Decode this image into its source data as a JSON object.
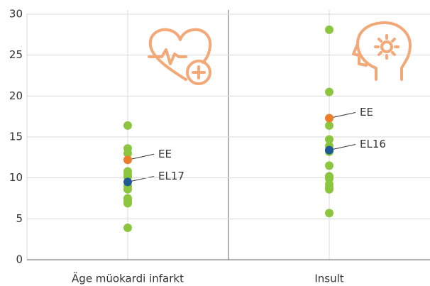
{
  "chart_data": {
    "type": "strip",
    "ylim": [
      0,
      30
    ],
    "yticks": [
      0,
      5,
      10,
      15,
      20,
      25,
      30
    ],
    "grid": true,
    "color": "#8cc63f",
    "categories": [
      {
        "name": "Äge müokardi infarkt",
        "values": [
          16.4,
          13.6,
          13.0,
          10.8,
          10.4,
          10.1,
          9.0,
          8.6,
          7.5,
          7.2,
          6.9,
          3.9
        ],
        "highlights": [
          {
            "label": "EE",
            "value": 12.2,
            "color": "#ee7d2b"
          },
          {
            "label": "EL17",
            "value": 9.5,
            "color": "#1f5a96"
          }
        ]
      },
      {
        "name": "Insult",
        "values": [
          28.1,
          20.5,
          16.4,
          14.7,
          13.9,
          13.2,
          11.5,
          10.2,
          9.9,
          9.2,
          8.8,
          8.6,
          5.7
        ],
        "highlights": [
          {
            "label": "EE",
            "value": 17.3,
            "color": "#ee7d2b"
          },
          {
            "label": "EL16",
            "value": 13.4,
            "color": "#1f5a96"
          }
        ]
      }
    ]
  }
}
